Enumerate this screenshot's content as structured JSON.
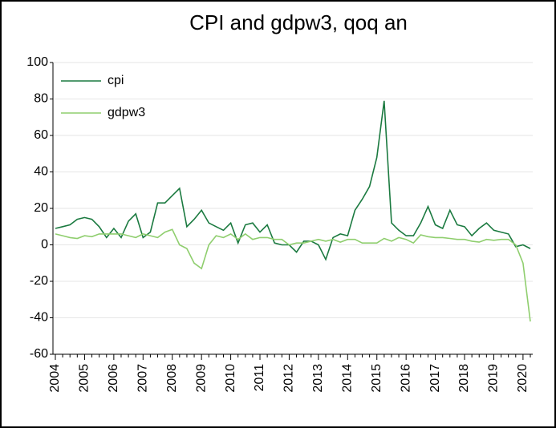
{
  "chart_data": {
    "type": "line",
    "title": "CPI and gdpw3, qoq an",
    "categories": [
      "2004",
      null,
      null,
      null,
      "2005",
      null,
      null,
      null,
      "2006",
      null,
      null,
      null,
      "2007",
      null,
      null,
      null,
      "2008",
      null,
      null,
      null,
      "2009",
      null,
      null,
      null,
      "2010",
      null,
      null,
      null,
      "2011",
      null,
      null,
      null,
      "2012",
      null,
      null,
      null,
      "2013",
      null,
      null,
      null,
      "2014",
      null,
      null,
      null,
      "2015",
      null,
      null,
      null,
      "2016",
      null,
      null,
      null,
      "2017",
      null,
      null,
      null,
      "2018",
      null,
      null,
      null,
      "2019",
      null,
      null,
      null,
      "2020",
      null
    ],
    "series": [
      {
        "name": "cpi",
        "color": "#1b7a40",
        "values": [
          9,
          10,
          11,
          14,
          15,
          14,
          10,
          4,
          9,
          4,
          13,
          17,
          4,
          7,
          23,
          23,
          27,
          31,
          10,
          14,
          19,
          12,
          10,
          8,
          12,
          1,
          11,
          12,
          7,
          11,
          1,
          0,
          0,
          -4,
          2,
          2,
          0,
          -8,
          4,
          6,
          5,
          19,
          25,
          32,
          48,
          79,
          12,
          8,
          5,
          5,
          12,
          21,
          11,
          9,
          19,
          11,
          10,
          5,
          9,
          12,
          8,
          7,
          6,
          -1,
          0,
          -2
        ]
      },
      {
        "name": "gdpw3",
        "color": "#8fce6e",
        "values": [
          6,
          5,
          4,
          3.5,
          5,
          4.5,
          6,
          6,
          6,
          6,
          5,
          4,
          6,
          5,
          4,
          7,
          8.5,
          0,
          -2,
          -10,
          -13,
          0,
          5,
          4,
          6,
          3,
          6,
          3,
          4,
          4,
          3,
          3,
          0,
          1,
          1,
          2,
          3,
          2,
          3,
          1.5,
          3,
          3,
          1,
          1,
          1,
          3.5,
          2,
          4,
          3,
          1,
          5.5,
          4.5,
          4,
          4,
          3.5,
          3,
          3,
          2,
          1.5,
          3,
          2.5,
          3,
          3,
          0,
          -10,
          -42
        ]
      }
    ],
    "ylim": [
      -60,
      100
    ],
    "yticks": [
      -60,
      -40,
      -20,
      0,
      20,
      40,
      60,
      80,
      100
    ],
    "grid": true,
    "legend": "top-left"
  }
}
